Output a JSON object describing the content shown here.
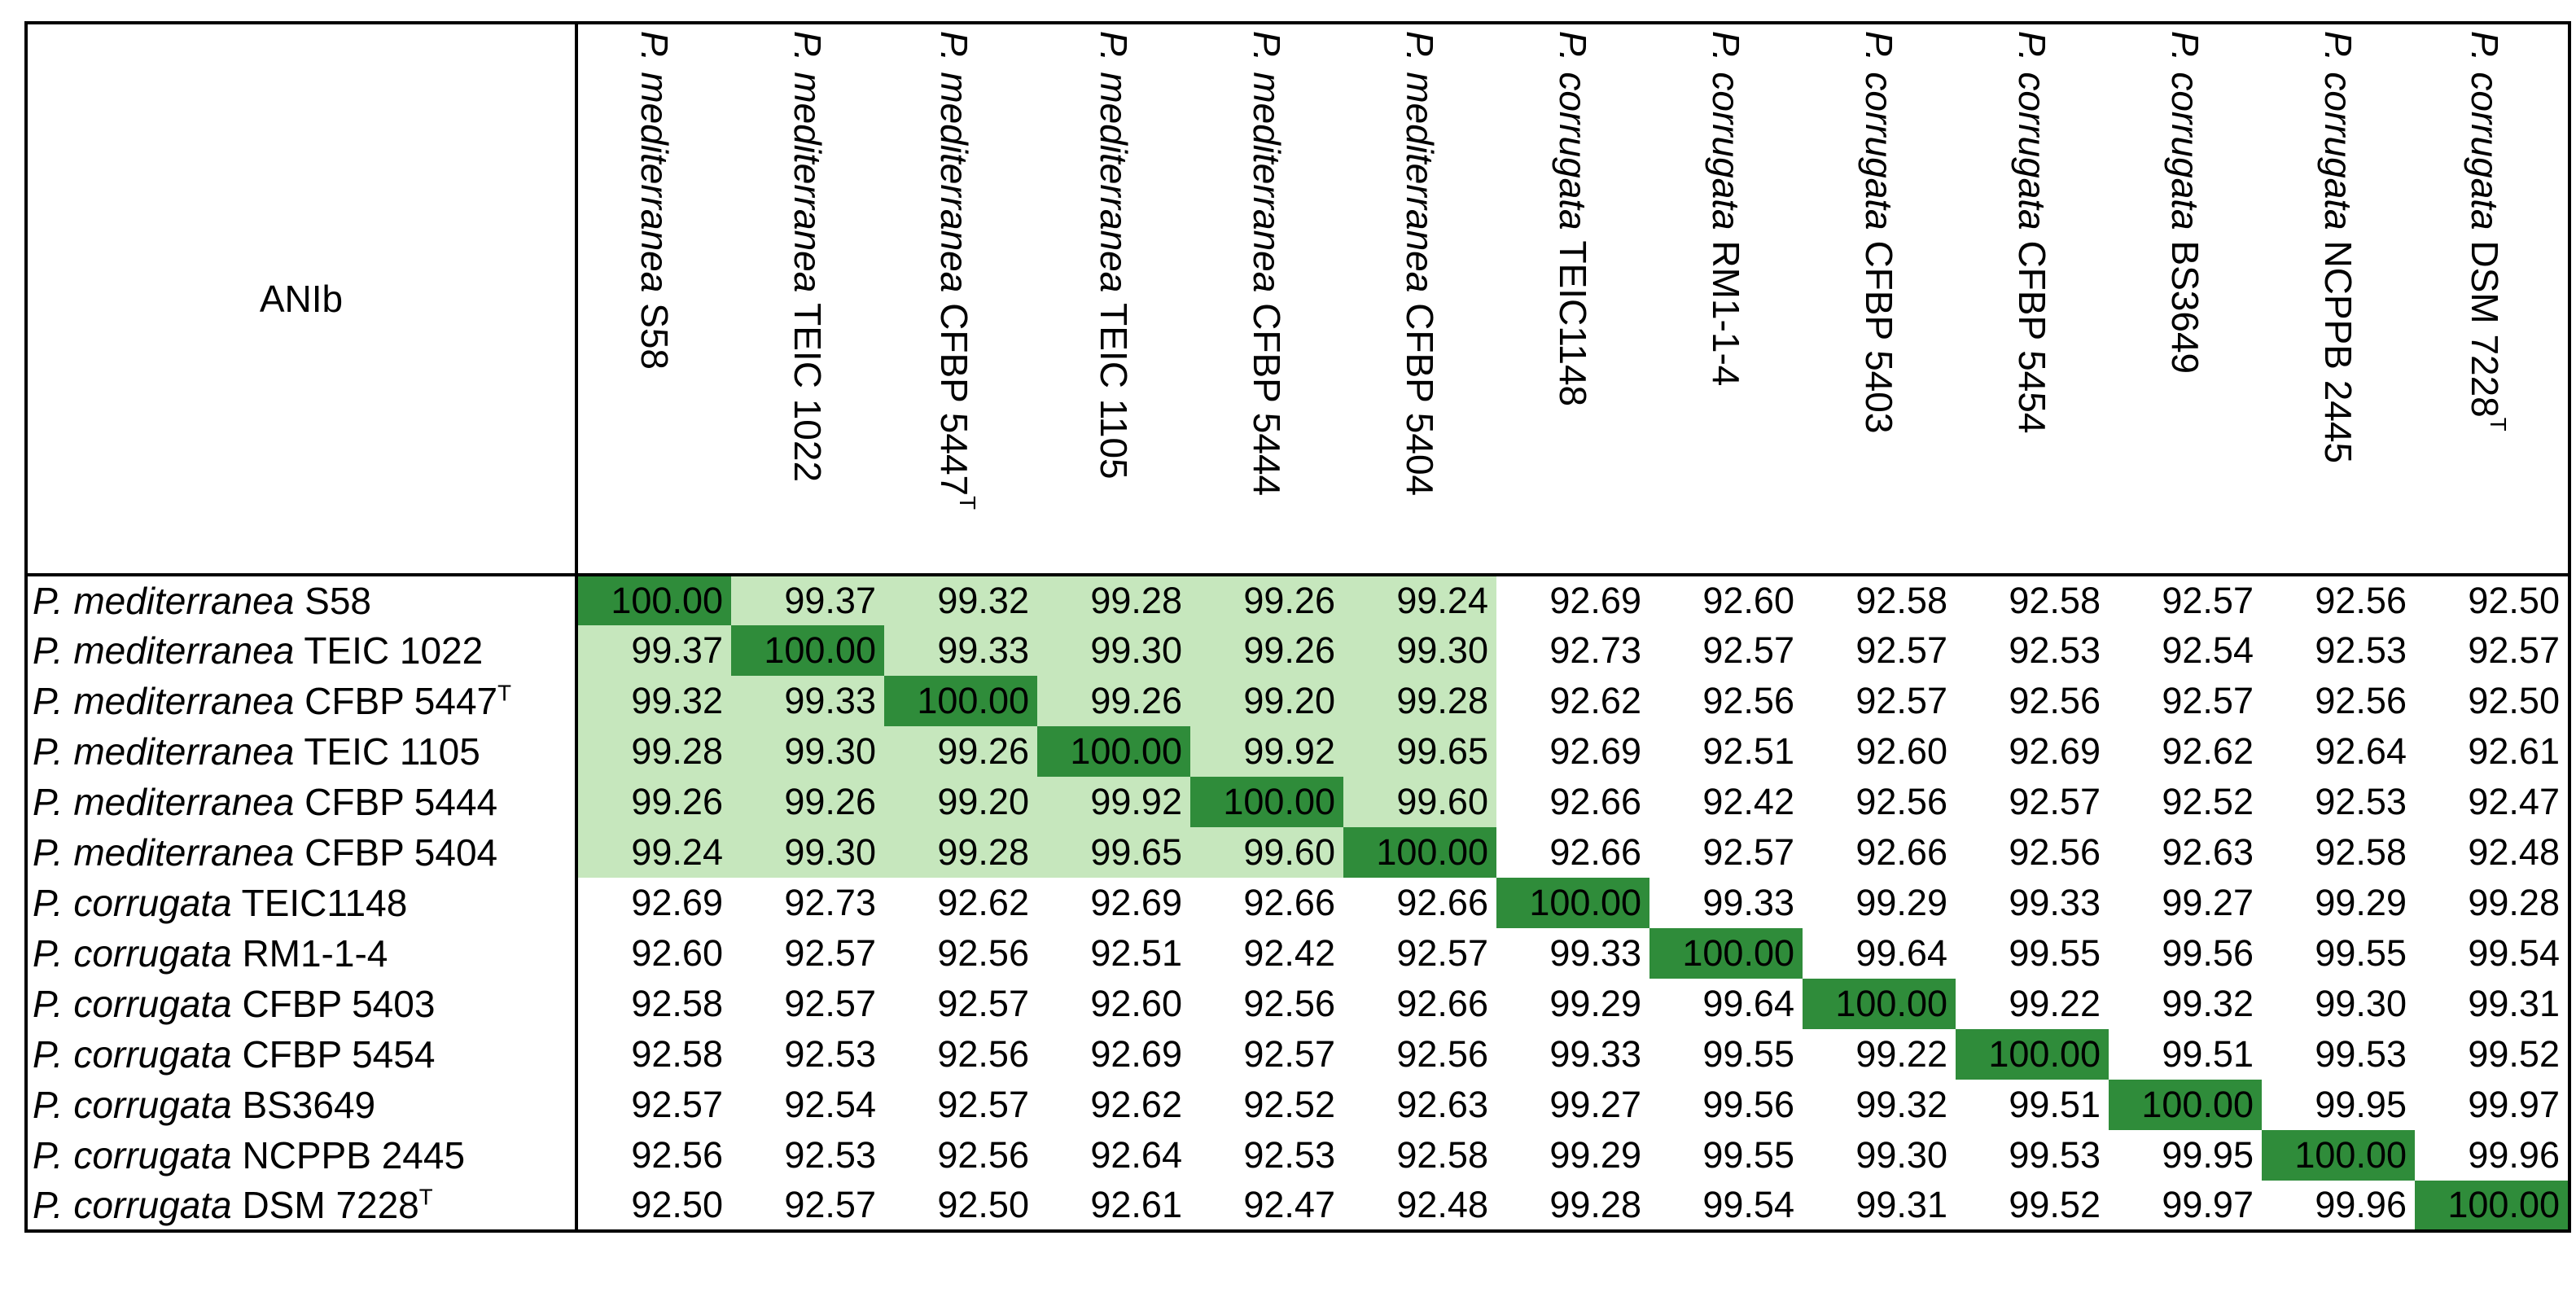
{
  "table": {
    "corner_label": "ANIb",
    "strains": [
      {
        "species": "P. mediterranea",
        "strain": "S58",
        "type_strain_mark": ""
      },
      {
        "species": "P. mediterranea",
        "strain": "TEIC 1022",
        "type_strain_mark": ""
      },
      {
        "species": "P. mediterranea",
        "strain": "CFBP 5447",
        "type_strain_mark": "T"
      },
      {
        "species": "P. mediterranea",
        "strain": "TEIC 1105",
        "type_strain_mark": ""
      },
      {
        "species": "P. mediterranea",
        "strain": "CFBP 5444",
        "type_strain_mark": ""
      },
      {
        "species": "P. mediterranea",
        "strain": "CFBP 5404",
        "type_strain_mark": ""
      },
      {
        "species": "P. corrugata",
        "strain": "TEIC1148",
        "type_strain_mark": ""
      },
      {
        "species": "P. corrugata",
        "strain": "RM1-1-4",
        "type_strain_mark": ""
      },
      {
        "species": "P. corrugata",
        "strain": "CFBP 5403",
        "type_strain_mark": ""
      },
      {
        "species": "P. corrugata",
        "strain": "CFBP 5454",
        "type_strain_mark": ""
      },
      {
        "species": "P. corrugata",
        "strain": "BS3649",
        "type_strain_mark": ""
      },
      {
        "species": "P. corrugata",
        "strain": "NCPPB 2445",
        "type_strain_mark": ""
      },
      {
        "species": "P. corrugata",
        "strain": "DSM 7228",
        "type_strain_mark": "T"
      }
    ],
    "values": [
      [
        "100.00",
        "99.37",
        "99.32",
        "99.28",
        "99.26",
        "99.24",
        "92.69",
        "92.60",
        "92.58",
        "92.58",
        "92.57",
        "92.56",
        "92.50"
      ],
      [
        "99.37",
        "100.00",
        "99.33",
        "99.30",
        "99.26",
        "99.30",
        "92.73",
        "92.57",
        "92.57",
        "92.53",
        "92.54",
        "92.53",
        "92.57"
      ],
      [
        "99.32",
        "99.33",
        "100.00",
        "99.26",
        "99.20",
        "99.28",
        "92.62",
        "92.56",
        "92.57",
        "92.56",
        "92.57",
        "92.56",
        "92.50"
      ],
      [
        "99.28",
        "99.30",
        "99.26",
        "100.00",
        "99.92",
        "99.65",
        "92.69",
        "92.51",
        "92.60",
        "92.69",
        "92.62",
        "92.64",
        "92.61"
      ],
      [
        "99.26",
        "99.26",
        "99.20",
        "99.92",
        "100.00",
        "99.60",
        "92.66",
        "92.42",
        "92.56",
        "92.57",
        "92.52",
        "92.53",
        "92.47"
      ],
      [
        "99.24",
        "99.30",
        "99.28",
        "99.65",
        "99.60",
        "100.00",
        "92.66",
        "92.57",
        "92.66",
        "92.56",
        "92.63",
        "92.58",
        "92.48"
      ],
      [
        "92.69",
        "92.73",
        "92.62",
        "92.69",
        "92.66",
        "92.66",
        "100.00",
        "99.33",
        "99.29",
        "99.33",
        "99.27",
        "99.29",
        "99.28"
      ],
      [
        "92.60",
        "92.57",
        "92.56",
        "92.51",
        "92.42",
        "92.57",
        "99.33",
        "100.00",
        "99.64",
        "99.55",
        "99.56",
        "99.55",
        "99.54"
      ],
      [
        "92.58",
        "92.57",
        "92.57",
        "92.60",
        "92.56",
        "92.66",
        "99.29",
        "99.64",
        "100.00",
        "99.22",
        "99.32",
        "99.30",
        "99.31"
      ],
      [
        "92.58",
        "92.53",
        "92.56",
        "92.69",
        "92.57",
        "92.56",
        "99.33",
        "99.55",
        "99.22",
        "100.00",
        "99.51",
        "99.53",
        "99.52"
      ],
      [
        "92.57",
        "92.54",
        "92.57",
        "92.62",
        "92.52",
        "92.63",
        "99.27",
        "99.56",
        "99.32",
        "99.51",
        "100.00",
        "99.95",
        "99.97"
      ],
      [
        "92.56",
        "92.53",
        "92.56",
        "92.64",
        "92.53",
        "92.58",
        "99.29",
        "99.55",
        "99.30",
        "99.53",
        "99.95",
        "100.00",
        "99.96"
      ],
      [
        "92.50",
        "92.57",
        "92.50",
        "92.61",
        "92.47",
        "92.48",
        "99.28",
        "99.54",
        "99.31",
        "99.52",
        "99.97",
        "99.96",
        "100.00"
      ]
    ],
    "colors": {
      "diagonal": "#2f8c3a",
      "within_mediterranea": "#c6e7bd",
      "other": "#ffffff"
    },
    "mediterranea_group_size": 6
  }
}
